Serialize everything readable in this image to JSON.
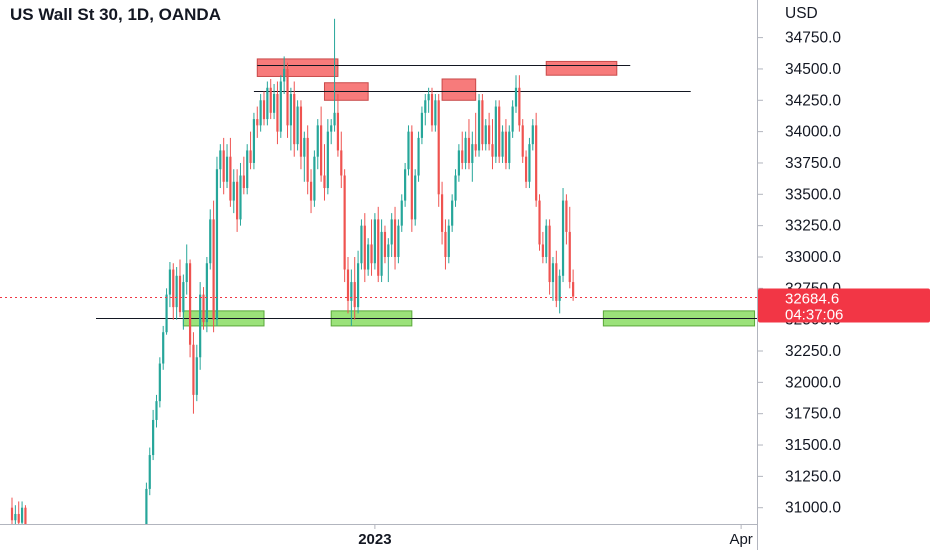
{
  "header": {
    "title": "US Wall St 30, 1D, OANDA"
  },
  "colors": {
    "up": "#26a69a",
    "down": "#ef5350",
    "resistance_box": "#f77b7b",
    "support_box": "#9be27a",
    "price_tag": "#f23645",
    "line": "#131722"
  },
  "chart_data": {
    "type": "candlestick",
    "title": "US Wall St 30, 1D, OANDA",
    "currency_label": "USD",
    "y_ticks": [
      31000,
      31250,
      31500,
      31750,
      32000,
      32250,
      32500,
      32750,
      33000,
      33250,
      33500,
      33750,
      34000,
      34250,
      34500,
      34750
    ],
    "y_tick_labels": [
      "31000.0",
      "31250.0",
      "31500.0",
      "31750.0",
      "32000.0",
      "32250.0",
      "32500.0",
      "32750.0",
      "33000.0",
      "33250.0",
      "33500.0",
      "33750.0",
      "34000.0",
      "34250.0",
      "34500.0",
      "34750.0"
    ],
    "ylim": [
      30870,
      35050
    ],
    "x_labels": [
      {
        "text": "2023",
        "bar": 108
      },
      {
        "text": "Apr",
        "bar": 217
      }
    ],
    "bar_count": 250,
    "last_price": {
      "value": 32684.6,
      "label": "32684.6",
      "countdown": "04:37:06"
    },
    "levels": [
      {
        "name": "resistance-line-top",
        "value": 34535,
        "from_bar": 73,
        "to_bar": 184
      },
      {
        "name": "resistance-line-mid",
        "value": 34325,
        "from_bar": 72,
        "to_bar": 202
      },
      {
        "name": "support-line",
        "value": 32510,
        "from_bar": 25,
        "to_bar": 250
      }
    ],
    "zones": [
      {
        "kind": "resistance",
        "from_bar": 73,
        "to_bar": 97,
        "low": 34440,
        "high": 34580
      },
      {
        "kind": "resistance",
        "from_bar": 93,
        "to_bar": 106,
        "low": 34250,
        "high": 34390
      },
      {
        "kind": "resistance",
        "from_bar": 128,
        "to_bar": 138,
        "low": 34250,
        "high": 34420
      },
      {
        "kind": "resistance",
        "from_bar": 159,
        "to_bar": 180,
        "low": 34450,
        "high": 34560
      },
      {
        "kind": "support",
        "from_bar": 51,
        "to_bar": 75,
        "low": 32450,
        "high": 32570
      },
      {
        "kind": "support",
        "from_bar": 95,
        "to_bar": 119,
        "low": 32450,
        "high": 32570
      },
      {
        "kind": "support",
        "from_bar": 176,
        "to_bar": 221,
        "low": 32450,
        "high": 32570
      }
    ],
    "candles": [
      [
        0,
        31000,
        31080,
        30870,
        30900
      ],
      [
        1,
        30900,
        31020,
        30870,
        30950
      ],
      [
        2,
        30950,
        31050,
        30870,
        30880
      ],
      [
        3,
        30880,
        31050,
        30870,
        31000
      ],
      [
        4,
        31000,
        31020,
        30870,
        30870
      ],
      [
        40,
        30870,
        31200,
        30870,
        31150
      ],
      [
        41,
        31150,
        31480,
        31100,
        31420
      ],
      [
        42,
        31420,
        31780,
        31380,
        31700
      ],
      [
        43,
        31700,
        31900,
        31640,
        31850
      ],
      [
        44,
        31850,
        32200,
        31800,
        32150
      ],
      [
        45,
        32150,
        32450,
        32100,
        32400
      ],
      [
        46,
        32400,
        32750,
        32380,
        32700
      ],
      [
        47,
        32700,
        32960,
        32600,
        32900
      ],
      [
        48,
        32900,
        32950,
        32500,
        32600
      ],
      [
        49,
        32600,
        32920,
        32500,
        32850
      ],
      [
        50,
        32850,
        32980,
        32520,
        32560
      ],
      [
        51,
        32560,
        32860,
        32420,
        32800
      ],
      [
        52,
        32800,
        33100,
        32700,
        32950
      ],
      [
        53,
        32950,
        32980,
        32200,
        32300
      ],
      [
        54,
        32300,
        32400,
        31750,
        31900
      ],
      [
        55,
        31900,
        32300,
        31850,
        32200
      ],
      [
        56,
        32200,
        32800,
        32100,
        32700
      ],
      [
        57,
        32700,
        32760,
        32420,
        32480
      ],
      [
        58,
        32480,
        33000,
        32400,
        32950
      ],
      [
        59,
        32950,
        33380,
        32900,
        33300
      ],
      [
        60,
        33300,
        33450,
        32400,
        32500
      ],
      [
        61,
        32500,
        33800,
        32450,
        33700
      ],
      [
        62,
        33700,
        33900,
        33550,
        33850
      ],
      [
        63,
        33850,
        33950,
        33500,
        33600
      ],
      [
        64,
        33600,
        33900,
        33550,
        33800
      ],
      [
        65,
        33800,
        33950,
        33400,
        33450
      ],
      [
        66,
        33450,
        33700,
        33350,
        33600
      ],
      [
        67,
        33600,
        33700,
        33200,
        33300
      ],
      [
        68,
        33300,
        33750,
        33250,
        33650
      ],
      [
        69,
        33650,
        33800,
        33500,
        33550
      ],
      [
        70,
        33550,
        33900,
        33500,
        33850
      ],
      [
        71,
        33850,
        34000,
        33700,
        33750
      ],
      [
        72,
        33750,
        34150,
        33700,
        34100
      ],
      [
        73,
        34100,
        34200,
        33950,
        34050
      ],
      [
        74,
        34050,
        34300,
        34000,
        34250
      ],
      [
        75,
        34250,
        34320,
        34050,
        34100
      ],
      [
        76,
        34100,
        34400,
        34050,
        34350
      ],
      [
        77,
        34350,
        34420,
        34100,
        34150
      ],
      [
        78,
        34150,
        34380,
        34100,
        34300
      ],
      [
        79,
        34300,
        34400,
        33900,
        34000
      ],
      [
        80,
        34000,
        34450,
        33950,
        34400
      ],
      [
        81,
        34400,
        34600,
        34300,
        34500
      ],
      [
        82,
        34500,
        34550,
        33950,
        34050
      ],
      [
        83,
        34050,
        34350,
        33850,
        34300
      ],
      [
        84,
        34300,
        34400,
        33800,
        33900
      ],
      [
        85,
        33900,
        34250,
        33850,
        34200
      ],
      [
        86,
        34200,
        34250,
        33700,
        33800
      ],
      [
        87,
        33800,
        34000,
        33600,
        33950
      ],
      [
        88,
        33950,
        34050,
        33500,
        33600
      ],
      [
        89,
        33600,
        33700,
        33350,
        33450
      ],
      [
        90,
        33450,
        33850,
        33400,
        33800
      ],
      [
        91,
        33800,
        34100,
        33700,
        34050
      ],
      [
        92,
        34050,
        34200,
        33600,
        33650
      ],
      [
        93,
        33650,
        33900,
        33450,
        33550
      ],
      [
        94,
        33550,
        34100,
        33500,
        34000
      ],
      [
        95,
        34000,
        34100,
        33900,
        34050
      ],
      [
        96,
        34050,
        34900,
        34000,
        34150
      ],
      [
        97,
        34150,
        34300,
        33800,
        33850
      ],
      [
        98,
        33850,
        34000,
        33550,
        33650
      ],
      [
        99,
        33650,
        33700,
        32800,
        32900
      ],
      [
        100,
        32900,
        33000,
        32550,
        32650
      ],
      [
        101,
        32650,
        32900,
        32450,
        32800
      ],
      [
        102,
        32800,
        33000,
        32500,
        32600
      ],
      [
        103,
        32600,
        33050,
        32550,
        32950
      ],
      [
        104,
        32950,
        33300,
        32900,
        33250
      ],
      [
        105,
        33250,
        33350,
        32800,
        32900
      ],
      [
        106,
        32900,
        33150,
        32850,
        33100
      ],
      [
        107,
        33100,
        33300,
        32850,
        32950
      ],
      [
        108,
        32950,
        33350,
        32900,
        33300
      ],
      [
        109,
        33300,
        33400,
        32800,
        32850
      ],
      [
        110,
        32850,
        33300,
        32800,
        33200
      ],
      [
        111,
        33200,
        33250,
        32950,
        33000
      ],
      [
        112,
        33000,
        33150,
        32800,
        33100
      ],
      [
        113,
        33100,
        33350,
        33000,
        33300
      ],
      [
        114,
        33300,
        33400,
        32900,
        33000
      ],
      [
        115,
        33000,
        33300,
        32950,
        33250
      ],
      [
        116,
        33250,
        33500,
        33200,
        33450
      ],
      [
        117,
        33450,
        33750,
        33400,
        33700
      ],
      [
        118,
        33700,
        34050,
        33650,
        34000
      ],
      [
        119,
        34000,
        34050,
        33200,
        33300
      ],
      [
        120,
        33300,
        33700,
        33250,
        33650
      ],
      [
        121,
        33650,
        34000,
        33600,
        33950
      ],
      [
        122,
        33950,
        34200,
        33900,
        34150
      ],
      [
        123,
        34150,
        34300,
        34050,
        34250
      ],
      [
        124,
        34250,
        34350,
        34150,
        34300
      ],
      [
        125,
        34300,
        34350,
        34000,
        34050
      ],
      [
        126,
        34050,
        34300,
        34000,
        34250
      ],
      [
        127,
        34250,
        34300,
        33400,
        33500
      ],
      [
        128,
        33500,
        33600,
        33100,
        33200
      ],
      [
        129,
        33200,
        33300,
        32900,
        33000
      ],
      [
        130,
        33000,
        33300,
        32950,
        33250
      ],
      [
        131,
        33250,
        33500,
        33200,
        33450
      ],
      [
        132,
        33450,
        33700,
        33400,
        33650
      ],
      [
        133,
        33650,
        33900,
        33600,
        33850
      ],
      [
        134,
        33850,
        34000,
        33700,
        33750
      ],
      [
        135,
        33750,
        34000,
        33700,
        33950
      ],
      [
        136,
        33950,
        34100,
        33700,
        33750
      ],
      [
        137,
        33750,
        34000,
        33600,
        33900
      ],
      [
        138,
        33900,
        34150,
        33800,
        33850
      ],
      [
        139,
        33850,
        34300,
        33800,
        34250
      ],
      [
        140,
        34250,
        34300,
        33850,
        33900
      ],
      [
        141,
        33900,
        34100,
        33850,
        34050
      ],
      [
        142,
        34050,
        34150,
        33850,
        33900
      ],
      [
        143,
        33900,
        34100,
        33700,
        33800
      ],
      [
        144,
        33800,
        34250,
        33750,
        34200
      ],
      [
        145,
        34200,
        34250,
        33750,
        33800
      ],
      [
        146,
        33800,
        34050,
        33750,
        34000
      ],
      [
        147,
        34000,
        34100,
        33700,
        33750
      ],
      [
        148,
        33750,
        34050,
        33700,
        34000
      ],
      [
        149,
        34000,
        34250,
        33950,
        34200
      ],
      [
        150,
        34200,
        34450,
        34150,
        34350
      ],
      [
        151,
        34350,
        34450,
        34000,
        34050
      ],
      [
        152,
        34050,
        34100,
        33750,
        33800
      ],
      [
        153,
        33800,
        33850,
        33550,
        33600
      ],
      [
        154,
        33600,
        33950,
        33550,
        33900
      ],
      [
        155,
        33900,
        34100,
        33850,
        34050
      ],
      [
        156,
        34050,
        34150,
        33400,
        33450
      ],
      [
        157,
        33450,
        33500,
        33050,
        33100
      ],
      [
        158,
        33100,
        33200,
        32950,
        33000
      ],
      [
        159,
        33000,
        33300,
        32950,
        33250
      ],
      [
        160,
        33250,
        33300,
        32700,
        32800
      ],
      [
        161,
        32800,
        33000,
        32650,
        32950
      ],
      [
        162,
        32950,
        33050,
        32600,
        32650
      ],
      [
        163,
        32650,
        32900,
        32550,
        32850
      ],
      [
        164,
        32850,
        33550,
        32800,
        33450
      ],
      [
        165,
        33450,
        33500,
        33100,
        33200
      ],
      [
        166,
        33200,
        33400,
        32750,
        32800
      ],
      [
        167,
        32800,
        32900,
        32650,
        32684.6
      ]
    ]
  }
}
